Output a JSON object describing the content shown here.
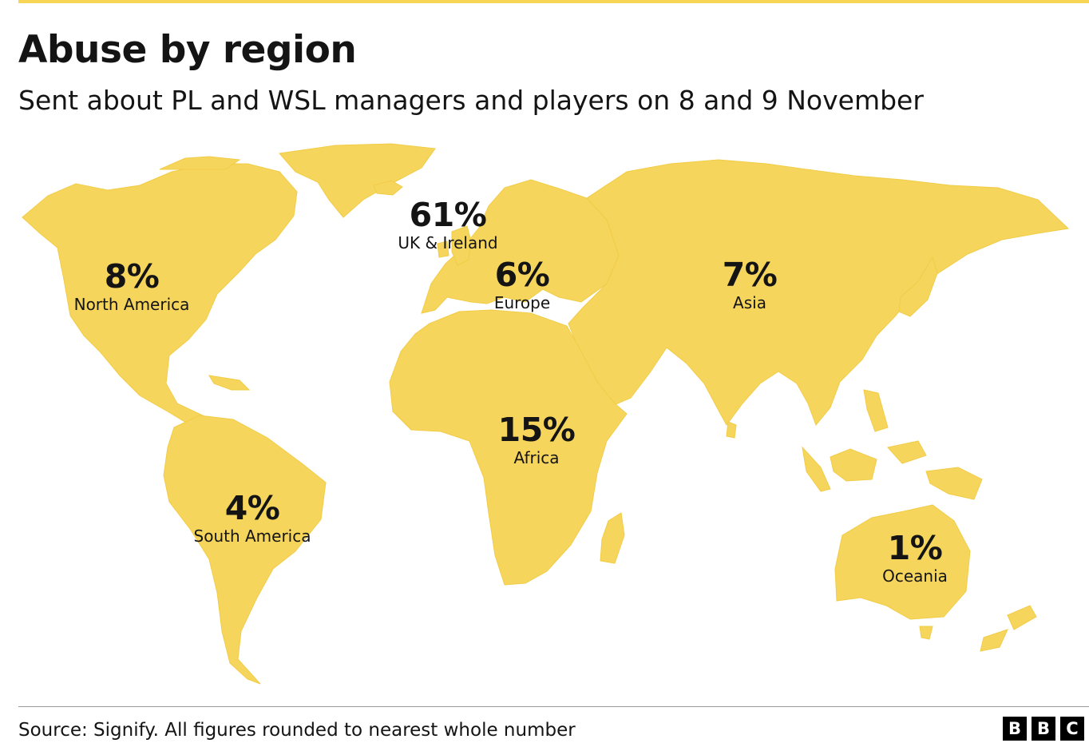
{
  "header": {
    "title": "Abuse by region",
    "subtitle": "Sent about PL and WSL managers and players on 8 and 9 November"
  },
  "regions": [
    {
      "value": "61%",
      "name": "UK & Ireland"
    },
    {
      "value": "8%",
      "name": "North America"
    },
    {
      "value": "6%",
      "name": "Europe"
    },
    {
      "value": "7%",
      "name": "Asia"
    },
    {
      "value": "15%",
      "name": "Africa"
    },
    {
      "value": "4%",
      "name": "South America"
    },
    {
      "value": "1%",
      "name": "Oceania"
    }
  ],
  "footer": {
    "source": "Source: Signify. All figures rounded to nearest whole number",
    "logo": [
      "B",
      "B",
      "C"
    ]
  },
  "colors": {
    "land": "#f6d55c",
    "accent_rule": "#f8d554",
    "text": "#141414",
    "logo_bg": "#000000"
  }
}
